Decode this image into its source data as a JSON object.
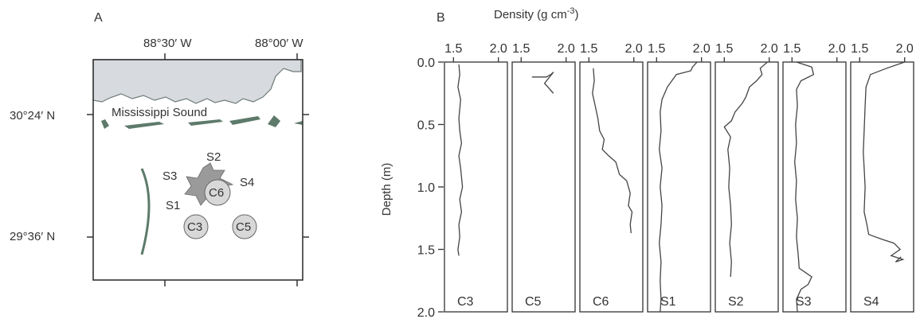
{
  "panel_a": {
    "letter": "A",
    "lon_labels": [
      "88°30′ W",
      "88°00′ W"
    ],
    "lat_labels": [
      "30°24′ N",
      "29°36′ N"
    ],
    "sound_label": "Mississippi Sound",
    "star_sites": [
      "S2",
      "S3",
      "S4",
      "S1"
    ],
    "circle_sites": [
      "C6",
      "C3",
      "C5"
    ],
    "colors": {
      "land": "#d7dadf",
      "island": "#5d7a6a",
      "marker": "#9a9a9a",
      "marker_light": "#d8d8d8"
    }
  },
  "panel_b": {
    "letter": "B",
    "x_title": "Density (g cm",
    "x_title_sup": "-3",
    "x_title_end": ")",
    "y_title": "Depth (m)"
  },
  "chart_data": {
    "type": "line",
    "xlabel": "Density (g cm-3)",
    "ylabel": "Depth (m)",
    "xlim": [
      1.4,
      2.1
    ],
    "xticks": [
      "1.5",
      "2.0"
    ],
    "ylim": [
      0.0,
      2.0
    ],
    "yticks": [
      "0.0",
      "0.5",
      "1.0",
      "1.5",
      "2.0"
    ],
    "y_inverted": true,
    "series": [
      {
        "name": "C3",
        "points": [
          [
            1.56,
            0.02
          ],
          [
            1.57,
            0.1
          ],
          [
            1.55,
            0.2
          ],
          [
            1.58,
            0.3
          ],
          [
            1.56,
            0.45
          ],
          [
            1.57,
            0.55
          ],
          [
            1.59,
            0.65
          ],
          [
            1.56,
            0.75
          ],
          [
            1.58,
            0.85
          ],
          [
            1.6,
            1.0
          ],
          [
            1.57,
            1.1
          ],
          [
            1.59,
            1.2
          ],
          [
            1.56,
            1.3
          ],
          [
            1.57,
            1.4
          ],
          [
            1.55,
            1.5
          ],
          [
            1.56,
            1.55
          ]
        ]
      },
      {
        "name": "C5",
        "points": [
          [
            1.62,
            0.12
          ],
          [
            1.78,
            0.12
          ],
          [
            1.83,
            0.1
          ],
          [
            1.86,
            0.08
          ],
          [
            1.76,
            0.17
          ],
          [
            1.86,
            0.25
          ],
          [
            1.82,
            0.22
          ]
        ]
      },
      {
        "name": "C6",
        "points": [
          [
            1.55,
            0.05
          ],
          [
            1.56,
            0.15
          ],
          [
            1.54,
            0.25
          ],
          [
            1.57,
            0.35
          ],
          [
            1.6,
            0.45
          ],
          [
            1.62,
            0.55
          ],
          [
            1.67,
            0.62
          ],
          [
            1.65,
            0.7
          ],
          [
            1.72,
            0.75
          ],
          [
            1.8,
            0.8
          ],
          [
            1.84,
            0.9
          ],
          [
            1.92,
            0.95
          ],
          [
            1.96,
            1.05
          ],
          [
            1.94,
            1.15
          ],
          [
            1.98,
            1.2
          ],
          [
            1.96,
            1.3
          ],
          [
            1.97,
            1.37
          ]
        ]
      },
      {
        "name": "S1",
        "points": [
          [
            1.95,
            0.0
          ],
          [
            1.9,
            0.04
          ],
          [
            1.88,
            0.07
          ],
          [
            1.72,
            0.1
          ],
          [
            1.62,
            0.2
          ],
          [
            1.56,
            0.3
          ],
          [
            1.54,
            0.4
          ],
          [
            1.55,
            0.55
          ],
          [
            1.53,
            0.7
          ],
          [
            1.56,
            0.85
          ],
          [
            1.54,
            1.0
          ],
          [
            1.56,
            1.15
          ],
          [
            1.55,
            1.3
          ],
          [
            1.53,
            1.45
          ],
          [
            1.55,
            1.6
          ],
          [
            1.54,
            1.75
          ],
          [
            1.55,
            1.9
          ],
          [
            1.54,
            2.0
          ]
        ]
      },
      {
        "name": "S2",
        "points": [
          [
            1.98,
            0.0
          ],
          [
            1.9,
            0.05
          ],
          [
            1.92,
            0.1
          ],
          [
            1.86,
            0.15
          ],
          [
            1.78,
            0.2
          ],
          [
            1.74,
            0.28
          ],
          [
            1.7,
            0.33
          ],
          [
            1.62,
            0.4
          ],
          [
            1.58,
            0.47
          ],
          [
            1.5,
            0.52
          ],
          [
            1.57,
            0.6
          ],
          [
            1.54,
            0.7
          ],
          [
            1.56,
            0.85
          ],
          [
            1.55,
            1.0
          ],
          [
            1.57,
            1.15
          ],
          [
            1.58,
            1.3
          ],
          [
            1.56,
            1.45
          ],
          [
            1.58,
            1.6
          ],
          [
            1.57,
            1.72
          ]
        ]
      },
      {
        "name": "S3",
        "points": [
          [
            1.55,
            0.0
          ],
          [
            1.72,
            0.04
          ],
          [
            1.74,
            0.1
          ],
          [
            1.6,
            0.15
          ],
          [
            1.55,
            0.22
          ],
          [
            1.56,
            0.35
          ],
          [
            1.54,
            0.5
          ],
          [
            1.55,
            0.65
          ],
          [
            1.53,
            0.8
          ],
          [
            1.55,
            0.95
          ],
          [
            1.54,
            1.1
          ],
          [
            1.56,
            1.25
          ],
          [
            1.55,
            1.4
          ],
          [
            1.57,
            1.55
          ],
          [
            1.58,
            1.65
          ],
          [
            1.72,
            1.72
          ],
          [
            1.68,
            1.78
          ],
          [
            1.6,
            1.82
          ],
          [
            1.55,
            1.9
          ],
          [
            1.56,
            2.0
          ]
        ]
      },
      {
        "name": "S4",
        "points": [
          [
            2.0,
            0.0
          ],
          [
            1.8,
            0.05
          ],
          [
            1.62,
            0.1
          ],
          [
            1.57,
            0.2
          ],
          [
            1.56,
            0.35
          ],
          [
            1.55,
            0.55
          ],
          [
            1.54,
            0.72
          ],
          [
            1.55,
            0.85
          ],
          [
            1.56,
            1.0
          ],
          [
            1.55,
            1.2
          ],
          [
            1.58,
            1.3
          ],
          [
            1.6,
            1.38
          ],
          [
            1.75,
            1.42
          ],
          [
            1.88,
            1.45
          ],
          [
            1.95,
            1.5
          ],
          [
            1.85,
            1.55
          ],
          [
            1.98,
            1.58
          ],
          [
            1.9,
            1.6
          ],
          [
            1.96,
            1.56
          ]
        ]
      }
    ]
  }
}
